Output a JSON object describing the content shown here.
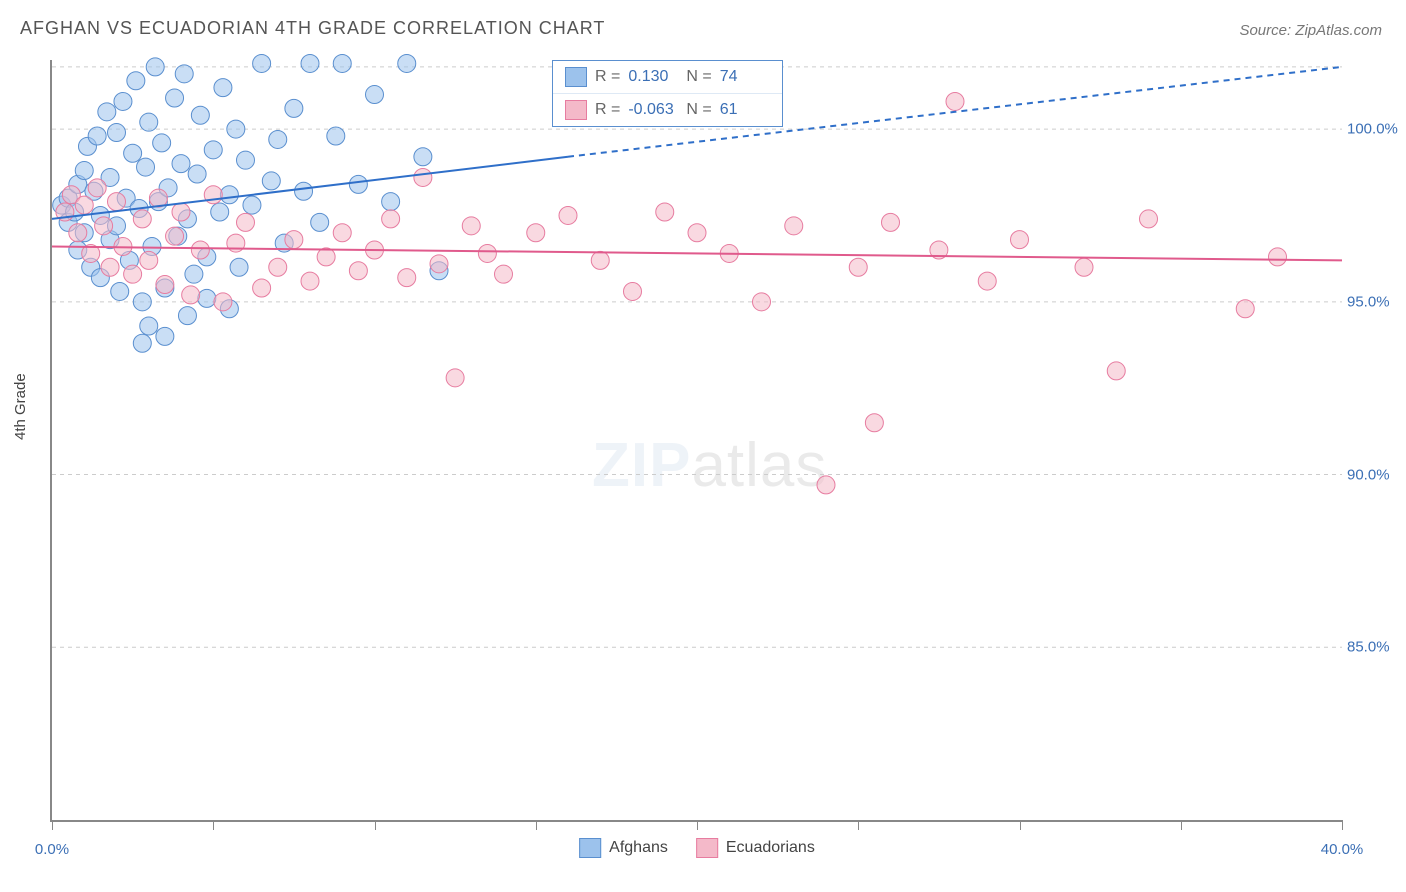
{
  "title": "AFGHAN VS ECUADORIAN 4TH GRADE CORRELATION CHART",
  "source_label": "Source: ZipAtlas.com",
  "y_axis_label": "4th Grade",
  "watermark": {
    "zip": "ZIP",
    "atlas": "atlas"
  },
  "chart": {
    "type": "scatter",
    "xlim": [
      0,
      40
    ],
    "ylim": [
      80,
      102
    ],
    "y_ticks": [
      85,
      90,
      95,
      100
    ],
    "y_tick_labels": [
      "85.0%",
      "90.0%",
      "95.0%",
      "100.0%"
    ],
    "x_ticks": [
      0,
      5,
      10,
      15,
      20,
      25,
      30,
      35,
      40
    ],
    "x_labels_shown": {
      "0": "0.0%",
      "40": "40.0%"
    },
    "grid_color": "#cccccc",
    "axis_color": "#888888",
    "background_color": "#ffffff",
    "tick_label_color": "#3b6fb5",
    "series": [
      {
        "key": "afghans",
        "label": "Afghans",
        "color_fill": "#9cc2ec",
        "color_stroke": "#5a8fcf",
        "marker_radius": 9,
        "marker_opacity": 0.55,
        "R": "0.130",
        "N": "74",
        "trend": {
          "solid": {
            "x1": 0,
            "y1": 97.4,
            "x2": 16,
            "y2": 99.2
          },
          "dashed": {
            "x1": 16,
            "y1": 99.2,
            "x2": 40,
            "y2": 101.8
          },
          "stroke": "#2f6fc9",
          "width": 2
        },
        "points": [
          [
            0.3,
            97.8
          ],
          [
            0.5,
            98.0
          ],
          [
            0.5,
            97.3
          ],
          [
            0.7,
            97.6
          ],
          [
            0.8,
            98.4
          ],
          [
            0.8,
            96.5
          ],
          [
            1.0,
            98.8
          ],
          [
            1.0,
            97.0
          ],
          [
            1.1,
            99.5
          ],
          [
            1.2,
            96.0
          ],
          [
            1.3,
            98.2
          ],
          [
            1.4,
            99.8
          ],
          [
            1.5,
            97.5
          ],
          [
            1.5,
            95.7
          ],
          [
            1.7,
            100.5
          ],
          [
            1.8,
            98.6
          ],
          [
            1.8,
            96.8
          ],
          [
            2.0,
            99.9
          ],
          [
            2.0,
            97.2
          ],
          [
            2.1,
            95.3
          ],
          [
            2.2,
            100.8
          ],
          [
            2.3,
            98.0
          ],
          [
            2.4,
            96.2
          ],
          [
            2.5,
            99.3
          ],
          [
            2.6,
            101.4
          ],
          [
            2.7,
            97.7
          ],
          [
            2.8,
            95.0
          ],
          [
            2.9,
            98.9
          ],
          [
            3.0,
            100.2
          ],
          [
            3.1,
            96.6
          ],
          [
            3.2,
            101.8
          ],
          [
            3.3,
            97.9
          ],
          [
            3.4,
            99.6
          ],
          [
            3.5,
            95.4
          ],
          [
            3.6,
            98.3
          ],
          [
            3.8,
            100.9
          ],
          [
            3.9,
            96.9
          ],
          [
            4.0,
            99.0
          ],
          [
            4.1,
            101.6
          ],
          [
            4.2,
            97.4
          ],
          [
            4.4,
            95.8
          ],
          [
            4.5,
            98.7
          ],
          [
            4.6,
            100.4
          ],
          [
            4.8,
            96.3
          ],
          [
            5.0,
            99.4
          ],
          [
            5.2,
            97.6
          ],
          [
            5.3,
            101.2
          ],
          [
            5.5,
            98.1
          ],
          [
            5.7,
            100.0
          ],
          [
            5.8,
            96.0
          ],
          [
            6.0,
            99.1
          ],
          [
            6.2,
            97.8
          ],
          [
            6.5,
            101.9
          ],
          [
            6.8,
            98.5
          ],
          [
            7.0,
            99.7
          ],
          [
            7.2,
            96.7
          ],
          [
            7.5,
            100.6
          ],
          [
            7.8,
            98.2
          ],
          [
            8.0,
            101.9
          ],
          [
            8.3,
            97.3
          ],
          [
            8.8,
            99.8
          ],
          [
            9.0,
            101.9
          ],
          [
            9.5,
            98.4
          ],
          [
            10.0,
            101.0
          ],
          [
            10.5,
            97.9
          ],
          [
            11.0,
            101.9
          ],
          [
            11.5,
            99.2
          ],
          [
            12.0,
            95.9
          ],
          [
            3.0,
            94.3
          ],
          [
            3.5,
            94.0
          ],
          [
            4.2,
            94.6
          ],
          [
            2.8,
            93.8
          ],
          [
            4.8,
            95.1
          ],
          [
            5.5,
            94.8
          ]
        ]
      },
      {
        "key": "ecuadorians",
        "label": "Ecuadorians",
        "color_fill": "#f4b9c9",
        "color_stroke": "#e77ca0",
        "marker_radius": 9,
        "marker_opacity": 0.55,
        "R": "-0.063",
        "N": "61",
        "trend": {
          "solid": {
            "x1": 0,
            "y1": 96.6,
            "x2": 40,
            "y2": 96.2
          },
          "dashed": null,
          "stroke": "#e05a8c",
          "width": 2
        },
        "points": [
          [
            0.4,
            97.6
          ],
          [
            0.6,
            98.1
          ],
          [
            0.8,
            97.0
          ],
          [
            1.0,
            97.8
          ],
          [
            1.2,
            96.4
          ],
          [
            1.4,
            98.3
          ],
          [
            1.6,
            97.2
          ],
          [
            1.8,
            96.0
          ],
          [
            2.0,
            97.9
          ],
          [
            2.2,
            96.6
          ],
          [
            2.5,
            95.8
          ],
          [
            2.8,
            97.4
          ],
          [
            3.0,
            96.2
          ],
          [
            3.3,
            98.0
          ],
          [
            3.5,
            95.5
          ],
          [
            3.8,
            96.9
          ],
          [
            4.0,
            97.6
          ],
          [
            4.3,
            95.2
          ],
          [
            4.6,
            96.5
          ],
          [
            5.0,
            98.1
          ],
          [
            5.3,
            95.0
          ],
          [
            5.7,
            96.7
          ],
          [
            6.0,
            97.3
          ],
          [
            6.5,
            95.4
          ],
          [
            7.0,
            96.0
          ],
          [
            7.5,
            96.8
          ],
          [
            8.0,
            95.6
          ],
          [
            8.5,
            96.3
          ],
          [
            9.0,
            97.0
          ],
          [
            9.5,
            95.9
          ],
          [
            10.0,
            96.5
          ],
          [
            10.5,
            97.4
          ],
          [
            11.0,
            95.7
          ],
          [
            11.5,
            98.6
          ],
          [
            12.0,
            96.1
          ],
          [
            12.5,
            92.8
          ],
          [
            13.0,
            97.2
          ],
          [
            13.5,
            96.4
          ],
          [
            14.0,
            95.8
          ],
          [
            15.0,
            97.0
          ],
          [
            16.0,
            97.5
          ],
          [
            17.0,
            96.2
          ],
          [
            18.0,
            95.3
          ],
          [
            19.0,
            97.6
          ],
          [
            20.0,
            97.0
          ],
          [
            21.0,
            96.4
          ],
          [
            22.0,
            95.0
          ],
          [
            23.0,
            97.2
          ],
          [
            24.0,
            89.7
          ],
          [
            25.0,
            96.0
          ],
          [
            25.5,
            91.5
          ],
          [
            26.0,
            97.3
          ],
          [
            27.5,
            96.5
          ],
          [
            28.0,
            100.8
          ],
          [
            29.0,
            95.6
          ],
          [
            30.0,
            96.8
          ],
          [
            32.0,
            96.0
          ],
          [
            33.0,
            93.0
          ],
          [
            34.0,
            97.4
          ],
          [
            37.0,
            94.8
          ],
          [
            38.0,
            96.3
          ]
        ]
      }
    ]
  },
  "legend_top": {
    "R_label": "R =",
    "N_label": "N ="
  },
  "legend_bottom": {
    "items": [
      "Afghans",
      "Ecuadorians"
    ]
  }
}
